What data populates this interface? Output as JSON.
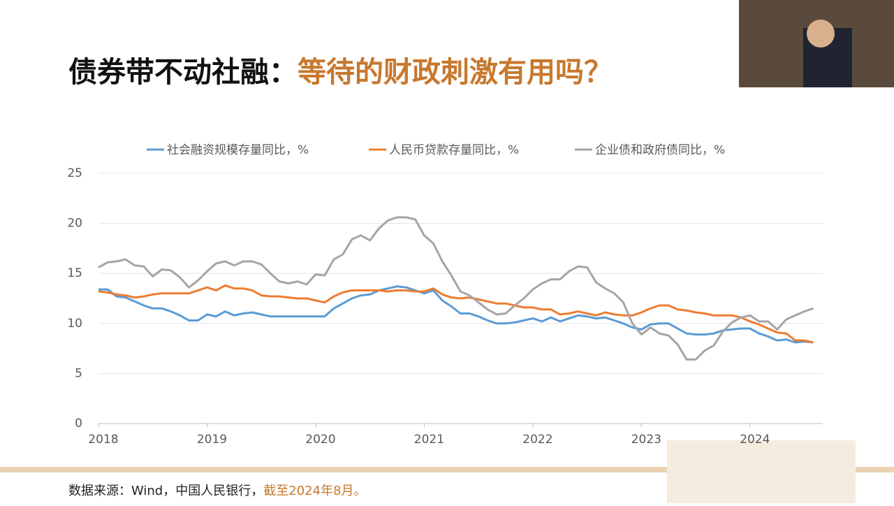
{
  "slide": {
    "title": [
      "债券带不动社融：",
      "等待的财政刺激有用吗？"
    ],
    "source": [
      "数据来源：Wind，中国人民银行，",
      "截至2024年8月。"
    ]
  },
  "chart_data": {
    "type": "line",
    "categories": [
      "2018",
      null,
      null,
      null,
      null,
      null,
      null,
      null,
      null,
      null,
      null,
      null,
      "2019",
      null,
      null,
      null,
      null,
      null,
      null,
      null,
      null,
      null,
      null,
      null,
      "2020",
      null,
      null,
      null,
      null,
      null,
      null,
      null,
      null,
      null,
      null,
      null,
      "2021",
      null,
      null,
      null,
      null,
      null,
      null,
      null,
      null,
      null,
      null,
      null,
      "2022",
      null,
      null,
      null,
      null,
      null,
      null,
      null,
      null,
      null,
      null,
      null,
      "2023",
      null,
      null,
      null,
      null,
      null,
      null,
      null,
      null,
      null,
      null,
      null,
      "2024",
      null,
      null,
      null,
      null,
      null,
      null,
      null
    ],
    "series": [
      {
        "name": "社会融资规模存量同比，%",
        "color": "#5b9bd5",
        "values": [
          13.4,
          13.4,
          12.7,
          12.6,
          12.2,
          11.8,
          11.5,
          11.5,
          11.2,
          10.8,
          10.3,
          10.3,
          10.9,
          10.7,
          11.2,
          10.8,
          11.0,
          11.1,
          10.9,
          10.7,
          10.7,
          10.7,
          10.7,
          10.7,
          10.7,
          10.7,
          11.5,
          12.0,
          12.5,
          12.8,
          12.9,
          13.3,
          13.5,
          13.7,
          13.6,
          13.3,
          13.0,
          13.3,
          12.3,
          11.7,
          11.0,
          11.0,
          10.7,
          10.3,
          10.0,
          10.0,
          10.1,
          10.3,
          10.5,
          10.2,
          10.6,
          10.2,
          10.5,
          10.8,
          10.7,
          10.5,
          10.6,
          10.3,
          10.0,
          9.6,
          9.4,
          9.9,
          10.0,
          10.0,
          9.5,
          9.0,
          8.9,
          8.9,
          9.0,
          9.3,
          9.4,
          9.5,
          9.5,
          9.0,
          8.7,
          8.3,
          8.4,
          8.1,
          8.2,
          8.1
        ]
      },
      {
        "name": "人民币贷款存量同比，%",
        "color": "#ed7d31",
        "values": [
          13.2,
          13.1,
          12.9,
          12.8,
          12.6,
          12.7,
          12.9,
          13.0,
          13.0,
          13.0,
          13.0,
          13.3,
          13.6,
          13.3,
          13.8,
          13.5,
          13.5,
          13.3,
          12.8,
          12.7,
          12.7,
          12.6,
          12.5,
          12.5,
          12.3,
          12.1,
          12.7,
          13.1,
          13.3,
          13.3,
          13.3,
          13.3,
          13.2,
          13.3,
          13.3,
          13.2,
          13.2,
          13.5,
          12.9,
          12.6,
          12.5,
          12.6,
          12.4,
          12.2,
          12.0,
          12.0,
          11.8,
          11.6,
          11.6,
          11.4,
          11.4,
          10.9,
          11.0,
          11.2,
          11.0,
          10.8,
          11.1,
          10.9,
          10.8,
          10.8,
          11.1,
          11.5,
          11.8,
          11.8,
          11.4,
          11.3,
          11.1,
          11.0,
          10.8,
          10.8,
          10.8,
          10.6,
          10.2,
          9.9,
          9.5,
          9.1,
          9.0,
          8.3,
          8.3,
          8.1
        ]
      },
      {
        "name": "企业债和政府债同比，%",
        "color": "#a5a5a5",
        "values": [
          15.6,
          16.1,
          16.2,
          16.4,
          15.8,
          15.7,
          14.7,
          15.4,
          15.3,
          14.6,
          13.6,
          14.3,
          15.2,
          16.0,
          16.2,
          15.8,
          16.2,
          16.2,
          15.9,
          15.0,
          14.2,
          14.0,
          14.2,
          13.9,
          14.9,
          14.8,
          16.4,
          16.9,
          18.4,
          18.8,
          18.3,
          19.5,
          20.3,
          20.6,
          20.6,
          20.4,
          18.8,
          18.0,
          16.2,
          14.8,
          13.2,
          12.8,
          12.1,
          11.4,
          10.9,
          11.0,
          11.8,
          12.5,
          13.4,
          14.0,
          14.4,
          14.4,
          15.2,
          15.7,
          15.6,
          14.1,
          13.5,
          13.0,
          12.1,
          10.0,
          8.9,
          9.6,
          9.0,
          8.8,
          7.9,
          6.4,
          6.4,
          7.3,
          7.8,
          9.2,
          10.1,
          10.6,
          10.8,
          10.2,
          10.2,
          9.4,
          10.4,
          10.8,
          11.2,
          11.5
        ]
      }
    ],
    "ylim": [
      0,
      25
    ],
    "yticks": [
      0,
      5,
      10,
      15,
      20,
      25
    ],
    "grid": true,
    "legend": "top"
  }
}
